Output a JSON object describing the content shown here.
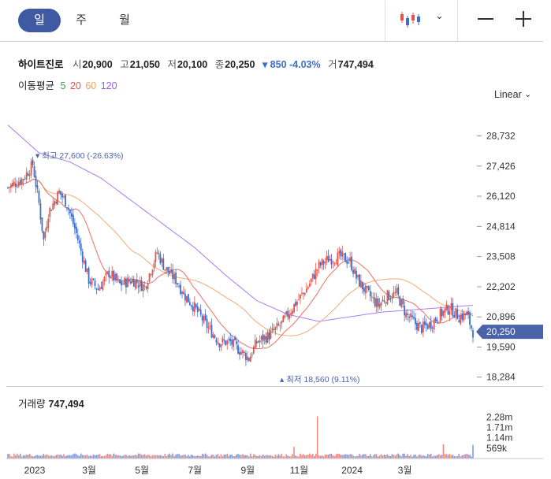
{
  "tabs": {
    "day": "일",
    "week": "주",
    "month": "월"
  },
  "icons": {
    "chart_type": "candlestick-icon",
    "dropdown": "chevron-down-icon",
    "zoom_out": "minus-icon",
    "zoom_in": "plus-icon"
  },
  "quote": {
    "name": "하이트진로",
    "open_label": "시",
    "open": "20,900",
    "high_label": "고",
    "high": "21,050",
    "low_label": "저",
    "low": "20,100",
    "close_label": "종",
    "close": "20,250",
    "change": "▾ 850 -4.03%",
    "volume_label": "거",
    "volume": "747,494"
  },
  "moving_average": {
    "label": "이동평균",
    "periods": [
      "5",
      "20",
      "60",
      "120"
    ],
    "colors": [
      "#3ca64a",
      "#e8534a",
      "#f0a060",
      "#9a5cf0"
    ]
  },
  "scale_mode": "Linear",
  "volume_panel": {
    "label": "거래량",
    "value": "747,494"
  },
  "colors": {
    "up": "#e8534a",
    "down": "#3e6ec9",
    "accent": "#3f5aa3",
    "price_tag": "#4a62a8"
  },
  "chart_data": {
    "type": "candlestick",
    "x_tick_labels": [
      "2023",
      "3월",
      "5월",
      "7월",
      "9월",
      "11월",
      "2024",
      "3월"
    ],
    "x_tick_index": [
      0,
      35,
      69,
      103,
      137,
      170,
      204,
      238
    ],
    "y_ticks": [
      28732,
      27426,
      26120,
      24814,
      23508,
      22202,
      20896,
      19590,
      18284
    ],
    "ylim": [
      17900,
      29500
    ],
    "current_price": 20250,
    "current_price_label": "20,250",
    "high_annotation": "최고 27,600 (-26.63%)",
    "low_annotation": "최저 18,560 (9.11%)",
    "volume_ticks": [
      "2.28m",
      "1.71m",
      "1.14m",
      "569k"
    ],
    "volume_tick_values": [
      2280000,
      1710000,
      1140000,
      569000
    ],
    "close_anchors": [
      [
        0,
        26500
      ],
      [
        5,
        26700
      ],
      [
        10,
        26900
      ],
      [
        16,
        27500
      ],
      [
        20,
        25800
      ],
      [
        23,
        24200
      ],
      [
        26,
        25400
      ],
      [
        33,
        26300
      ],
      [
        38,
        25800
      ],
      [
        44,
        24500
      ],
      [
        52,
        22500
      ],
      [
        58,
        22100
      ],
      [
        65,
        22800
      ],
      [
        72,
        22300
      ],
      [
        80,
        22500
      ],
      [
        88,
        22200
      ],
      [
        96,
        23700
      ],
      [
        101,
        23000
      ],
      [
        108,
        22500
      ],
      [
        114,
        21800
      ],
      [
        120,
        21300
      ],
      [
        128,
        20500
      ],
      [
        136,
        19800
      ],
      [
        143,
        19800
      ],
      [
        150,
        19400
      ],
      [
        155,
        19100
      ],
      [
        160,
        19800
      ],
      [
        168,
        20100
      ],
      [
        176,
        20600
      ],
      [
        184,
        21400
      ],
      [
        192,
        22100
      ],
      [
        200,
        23100
      ],
      [
        206,
        23400
      ],
      [
        214,
        23500
      ],
      [
        220,
        23300
      ],
      [
        224,
        22600
      ],
      [
        230,
        22000
      ],
      [
        238,
        21400
      ],
      [
        244,
        21800
      ],
      [
        250,
        21900
      ],
      [
        256,
        21000
      ],
      [
        262,
        20600
      ],
      [
        266,
        20400
      ],
      [
        272,
        20600
      ],
      [
        278,
        21000
      ],
      [
        284,
        21300
      ],
      [
        290,
        20900
      ],
      [
        295,
        21000
      ],
      [
        299,
        20250
      ]
    ],
    "ma120_anchors": [
      [
        0,
        29200
      ],
      [
        20,
        28000
      ],
      [
        40,
        27600
      ],
      [
        60,
        26900
      ],
      [
        80,
        25900
      ],
      [
        100,
        24900
      ],
      [
        120,
        23900
      ],
      [
        140,
        22700
      ],
      [
        160,
        21600
      ],
      [
        180,
        21000
      ],
      [
        200,
        20700
      ],
      [
        220,
        20900
      ],
      [
        240,
        21100
      ],
      [
        260,
        21200
      ],
      [
        280,
        21300
      ],
      [
        299,
        21400
      ]
    ]
  }
}
